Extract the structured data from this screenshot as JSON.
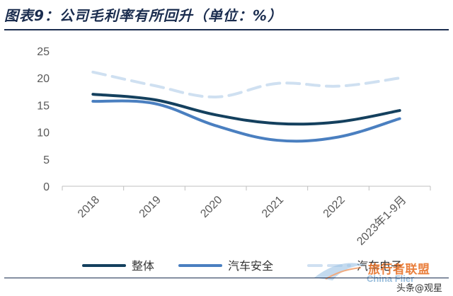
{
  "figure": {
    "title": "图表9：公司毛利率有所回升（单位：%）",
    "watermark": "旅行者联盟",
    "watermark_sub": "China Flier",
    "source": "头条@观星"
  },
  "chart_data": {
    "type": "line",
    "categories": [
      "2018",
      "2019",
      "2020",
      "2021",
      "2022",
      "2023年1-9月"
    ],
    "series": [
      {
        "name": "整体",
        "values": [
          17.0,
          16.0,
          13.2,
          11.6,
          11.9,
          14.0
        ],
        "color": "#14405e",
        "style": "solid"
      },
      {
        "name": "汽车安全",
        "values": [
          15.7,
          15.3,
          11.2,
          8.5,
          9.1,
          12.5
        ],
        "color": "#4a7fc0",
        "style": "solid"
      },
      {
        "name": "汽车电子",
        "values": [
          21.1,
          18.6,
          16.5,
          19.0,
          18.5,
          20.0
        ],
        "color": "#cfe0f1",
        "style": "dashed"
      }
    ],
    "yticks": [
      0,
      5,
      10,
      15,
      20,
      25
    ],
    "ylim": [
      0,
      25
    ],
    "grid": false,
    "legend": "bottom"
  }
}
